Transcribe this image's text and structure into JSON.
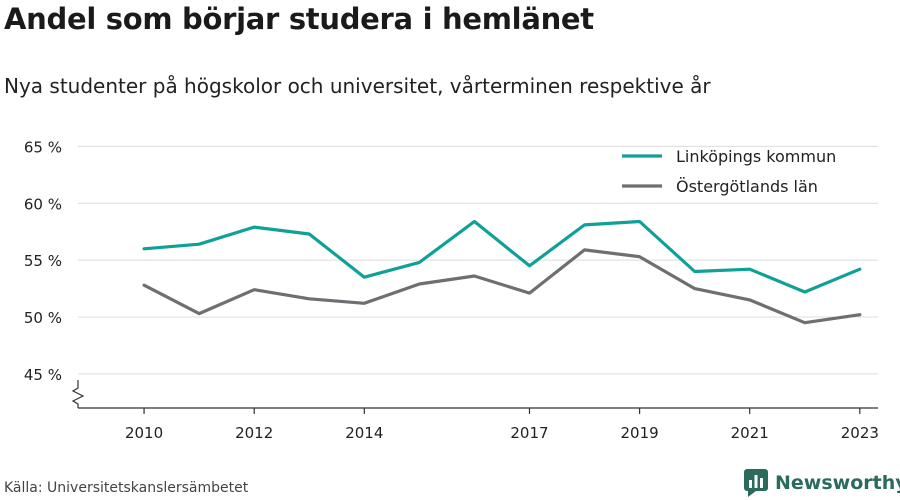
{
  "header": {
    "title": "Andel som börjar studera i hemlänet",
    "subtitle": "Nya studenter på högskolor och universitet, vårterminen respektive år"
  },
  "footer": {
    "source": "Källa: Universitetskanslersämbetet",
    "brand": "Newsworthy"
  },
  "colors": {
    "series_1": "#0fa197",
    "series_2": "#6e6e73",
    "grid": "#dcdcdc",
    "axis": "#333333",
    "text": "#222222",
    "brand": "#2a6b5b"
  },
  "chart_data": {
    "type": "line",
    "x": [
      2010,
      2011,
      2012,
      2013,
      2014,
      2015,
      2016,
      2017,
      2018,
      2019,
      2020,
      2021,
      2022,
      2023
    ],
    "xticks": [
      2010,
      2012,
      2014,
      2017,
      2019,
      2021,
      2023
    ],
    "yticks": [
      45,
      50,
      55,
      60,
      65
    ],
    "ytick_labels": [
      "45 %",
      "50 %",
      "55 %",
      "60 %",
      "65 %"
    ],
    "ylim": [
      42,
      66
    ],
    "xlim": [
      2008.8,
      2023.33
    ],
    "y_axis_break": true,
    "grid": true,
    "legend_position": "top-right",
    "series": [
      {
        "name": "Linköpings kommun",
        "values": [
          56.0,
          56.4,
          57.9,
          57.3,
          53.5,
          54.8,
          58.4,
          54.5,
          58.1,
          58.4,
          54.0,
          54.2,
          52.2,
          54.2
        ]
      },
      {
        "name": "Östergötlands län",
        "values": [
          52.8,
          50.3,
          52.4,
          51.6,
          51.2,
          52.9,
          53.6,
          52.1,
          55.9,
          55.3,
          52.5,
          51.5,
          49.5,
          50.2
        ]
      }
    ]
  }
}
